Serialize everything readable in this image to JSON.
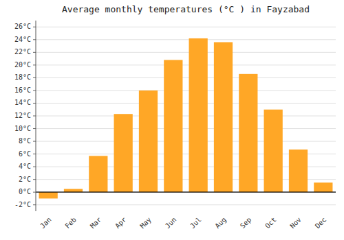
{
  "chart_data": {
    "type": "bar",
    "title": "Average monthly temperatures (°C ) in Fayzabad",
    "categories": [
      "Jan",
      "Feb",
      "Mar",
      "Apr",
      "May",
      "Jun",
      "Jul",
      "Aug",
      "Sep",
      "Oct",
      "Nov",
      "Dec"
    ],
    "values": [
      -1.0,
      0.5,
      5.7,
      12.3,
      16.0,
      20.8,
      24.2,
      23.6,
      18.6,
      13.0,
      6.7,
      1.5
    ],
    "color": "#FFA726",
    "ylim": [
      -3,
      27
    ],
    "yticks": [
      {
        "value": -2,
        "label": "-2°C"
      },
      {
        "value": 0,
        "label": "0°C"
      },
      {
        "value": 2,
        "label": "2°C"
      },
      {
        "value": 4,
        "label": "4°C"
      },
      {
        "value": 6,
        "label": "6°C"
      },
      {
        "value": 8,
        "label": "8°C"
      },
      {
        "value": 10,
        "label": "10°C"
      },
      {
        "value": 12,
        "label": "12°C"
      },
      {
        "value": 14,
        "label": "14°C"
      },
      {
        "value": 16,
        "label": "16°C"
      },
      {
        "value": 18,
        "label": "18°C"
      },
      {
        "value": 20,
        "label": "20°C"
      },
      {
        "value": 22,
        "label": "22°C"
      },
      {
        "value": 24,
        "label": "24°C"
      },
      {
        "value": 26,
        "label": "26°C"
      }
    ],
    "grid": true
  }
}
